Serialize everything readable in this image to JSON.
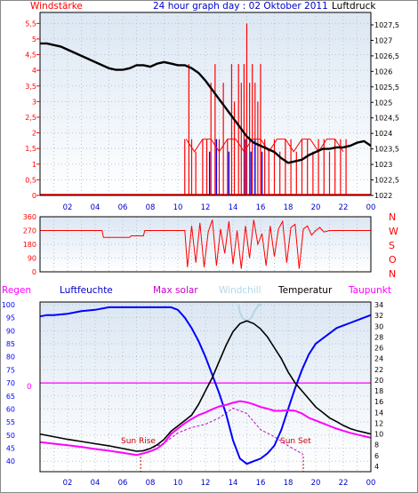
{
  "title": "24 hour graph day : 02 Oktober 2011",
  "colors": {
    "background": "#ffffff",
    "plot_top": "#dce7f3",
    "plot_bottom": "#ffffff",
    "grid": "#b7c6d8",
    "wind_speed": "#ff0000",
    "wind_gust": "#0000ff",
    "pressure": "#000000",
    "direction": "#ff0000",
    "humidity": "#0000ff",
    "temperature": "#000000",
    "dewpoint": "#ff00ff",
    "windchill": "#b3d6e6",
    "max_solar": "#cc00cc",
    "rain": "#ff00ff",
    "sun_marker": "#cc0000"
  },
  "chart_data": [
    {
      "type": "line",
      "name": "wind-pressure",
      "left_label": "Windstärke",
      "right_label": "Luftdruck",
      "x_ticks": [
        "02",
        "04",
        "06",
        "08",
        "10",
        "12",
        "14",
        "16",
        "18",
        "20",
        "22",
        "00"
      ],
      "xlim": [
        0,
        24
      ],
      "left_ticks": [
        "0",
        "0,5",
        "1",
        "1,5",
        "2",
        "2,5",
        "3",
        "3,5",
        "4",
        "4,5",
        "5",
        "5,5"
      ],
      "left_ylim": [
        0,
        5.85
      ],
      "right_ticks": [
        "1022",
        "1022,5",
        "1023",
        "1023,5",
        "1024",
        "1024,5",
        "1025",
        "1025,5",
        "1026",
        "1026,5",
        "1027",
        "1027,5"
      ],
      "right_ylim": [
        1022,
        1027.9
      ],
      "pressure": {
        "x": [
          0,
          0.5,
          1,
          1.5,
          2,
          2.5,
          3,
          3.5,
          4,
          4.5,
          5,
          5.5,
          6,
          6.5,
          7,
          7.5,
          8,
          8.5,
          9,
          9.5,
          10,
          10.5,
          11,
          11.5,
          12,
          12.5,
          13,
          13.5,
          14,
          14.5,
          15,
          15.5,
          16,
          16.5,
          17,
          17.5,
          18,
          18.5,
          19,
          19.5,
          20,
          20.5,
          21,
          21.5,
          22,
          22.5,
          23,
          23.5,
          24
        ],
        "y": [
          1026.9,
          1026.9,
          1026.85,
          1026.8,
          1026.7,
          1026.6,
          1026.5,
          1026.4,
          1026.3,
          1026.2,
          1026.1,
          1026.05,
          1026.05,
          1026.1,
          1026.2,
          1026.2,
          1026.15,
          1026.25,
          1026.3,
          1026.25,
          1026.2,
          1026.2,
          1026.1,
          1025.95,
          1025.7,
          1025.4,
          1025.1,
          1024.8,
          1024.5,
          1024.2,
          1023.9,
          1023.7,
          1023.6,
          1023.5,
          1023.4,
          1023.2,
          1023.05,
          1023.1,
          1023.15,
          1023.3,
          1023.4,
          1023.5,
          1023.5,
          1023.55,
          1023.55,
          1023.6,
          1023.7,
          1023.75,
          1023.6
        ]
      },
      "wind_speed_bars": [
        [
          10.5,
          1.8
        ],
        [
          10.8,
          4.2
        ],
        [
          11,
          1.8
        ],
        [
          11.3,
          1.4
        ],
        [
          11.8,
          1.8
        ],
        [
          12.1,
          1.8
        ],
        [
          12.4,
          3.6
        ],
        [
          12.7,
          4.2
        ],
        [
          13,
          1.8
        ],
        [
          13.3,
          3.6
        ],
        [
          13.6,
          1.8
        ],
        [
          13.9,
          4.2
        ],
        [
          14.1,
          3.0
        ],
        [
          14.4,
          4.2
        ],
        [
          14.6,
          3.6
        ],
        [
          14.8,
          4.2
        ],
        [
          15,
          5.5
        ],
        [
          15.2,
          3.6
        ],
        [
          15.4,
          4.2
        ],
        [
          15.6,
          3.6
        ],
        [
          15.8,
          3.0
        ],
        [
          16,
          4.2
        ],
        [
          16.3,
          1.8
        ],
        [
          16.6,
          1.4
        ],
        [
          17,
          1.8
        ],
        [
          17.4,
          1.4
        ],
        [
          17.8,
          1.8
        ],
        [
          18.2,
          1.8
        ],
        [
          18.6,
          1.4
        ],
        [
          19,
          1.8
        ],
        [
          19.4,
          1.8
        ],
        [
          19.8,
          1.4
        ],
        [
          20.2,
          1.8
        ],
        [
          20.6,
          1.8
        ],
        [
          21,
          1.4
        ],
        [
          21.4,
          1.8
        ],
        [
          21.8,
          1.8
        ],
        [
          22.2,
          1.8
        ]
      ],
      "wind_gust_bars": [
        [
          12.3,
          1.4
        ],
        [
          12.8,
          1.8
        ],
        [
          13.7,
          1.4
        ],
        [
          14.9,
          1.8
        ],
        [
          15.3,
          1.4
        ],
        [
          15.6,
          1.8
        ],
        [
          16.1,
          1.4
        ]
      ]
    },
    {
      "type": "line",
      "name": "wind-direction",
      "right_label": [
        "N",
        "W",
        "S",
        "O",
        "N"
      ],
      "left_ticks": [
        "0",
        "90",
        "180",
        "270",
        "360"
      ],
      "ylim": [
        0,
        360
      ],
      "x": [
        0,
        4.5,
        4.6,
        6.5,
        6.6,
        7.5,
        7.6,
        10.5,
        10.7,
        11,
        11.3,
        11.6,
        11.9,
        12.2,
        12.5,
        12.8,
        13.1,
        13.4,
        13.7,
        14,
        14.3,
        14.6,
        14.9,
        15.2,
        15.5,
        15.8,
        16.1,
        16.4,
        16.7,
        17,
        17.3,
        17.6,
        17.9,
        18.2,
        18.5,
        18.8,
        19.1,
        19.4,
        19.7,
        20,
        20.3,
        20.6,
        21,
        21.5,
        22,
        23,
        24
      ],
      "y": [
        270,
        270,
        225,
        225,
        235,
        235,
        270,
        270,
        30,
        300,
        60,
        320,
        30,
        260,
        340,
        40,
        280,
        120,
        330,
        50,
        270,
        20,
        300,
        90,
        340,
        180,
        250,
        40,
        300,
        100,
        280,
        330,
        60,
        290,
        310,
        20,
        280,
        300,
        240,
        270,
        290,
        260,
        270,
        270,
        270,
        270,
        270
      ]
    },
    {
      "type": "line",
      "name": "temperature-humidity",
      "legend": [
        "Regen",
        "Luftfeuchte",
        "Max solar",
        "Windchill",
        "Temperatur",
        "Taupunkt"
      ],
      "left_ticks": [
        "40",
        "45",
        "50",
        "55",
        "60",
        "65",
        "70",
        "75",
        "80",
        "85",
        "90",
        "95",
        "100"
      ],
      "left_ylim": [
        36,
        101
      ],
      "right_ticks": [
        "4",
        "6",
        "8",
        "10",
        "12",
        "14",
        "16",
        "18",
        "20",
        "22",
        "24",
        "26",
        "28",
        "30",
        "32",
        "34"
      ],
      "right_ylim": [
        3,
        34.5
      ],
      "rain_marker": "0",
      "rain_line_value": 70,
      "sun_rise_label": "Sun Rise",
      "sun_set_label": "Sun Set",
      "sun_rise_x": 7.3,
      "sun_set_x": 19.1,
      "humidity": {
        "x": [
          0,
          0.5,
          1,
          2,
          3,
          4,
          5,
          6,
          7,
          8,
          9,
          9.5,
          10,
          10.5,
          11,
          11.5,
          12,
          12.5,
          13,
          13.5,
          14,
          14.5,
          15,
          15.5,
          16,
          16.5,
          17,
          17.5,
          18,
          18.5,
          19,
          19.5,
          20,
          20.5,
          21,
          21.5,
          22,
          22.5,
          23,
          23.5,
          24
        ],
        "y": [
          95.5,
          96,
          96,
          96.5,
          97.5,
          98,
          99,
          99,
          99,
          99,
          99,
          99,
          98,
          95,
          91,
          86,
          80,
          73,
          66,
          58,
          48,
          41,
          39,
          40,
          41,
          43,
          46,
          52,
          60,
          68,
          75,
          81,
          85,
          87,
          89,
          91,
          92,
          93,
          94,
          95,
          96
        ]
      },
      "temperature": {
        "x": [
          0,
          1,
          2,
          3,
          4,
          5,
          6,
          7,
          7.5,
          8,
          8.5,
          9,
          9.5,
          10,
          10.5,
          11,
          11.5,
          12,
          12.5,
          13,
          13.5,
          14,
          14.5,
          15,
          15.5,
          16,
          16.5,
          17,
          17.5,
          18,
          18.5,
          19,
          19.5,
          20,
          20.5,
          21,
          21.5,
          22,
          22.5,
          23,
          23.5,
          24
        ],
        "y": [
          10,
          9.5,
          9,
          8.6,
          8.2,
          7.8,
          7.3,
          6.8,
          6.9,
          7.3,
          8,
          9,
          10.5,
          11.5,
          12.5,
          13.5,
          15.5,
          18,
          20.5,
          23.5,
          26.5,
          29,
          30.5,
          31,
          30.5,
          29.5,
          28,
          26,
          24,
          21.5,
          19.5,
          18,
          16.5,
          15,
          14,
          13,
          12.3,
          11.6,
          11,
          10.6,
          10.3,
          10
        ]
      },
      "dewpoint": {
        "x": [
          0,
          1,
          2,
          3,
          4,
          5,
          6,
          7,
          7.5,
          8,
          8.5,
          9,
          9.5,
          10,
          10.5,
          11,
          11.5,
          12,
          12.5,
          13,
          13.5,
          14,
          14.5,
          15,
          15.5,
          16,
          16.5,
          17,
          17.5,
          18,
          18.5,
          19,
          19.5,
          20,
          20.5,
          21,
          21.5,
          22,
          22.5,
          23,
          23.5,
          24
        ],
        "y": [
          8.5,
          8.2,
          7.9,
          7.6,
          7.2,
          6.9,
          6.5,
          6.1,
          6.4,
          6.8,
          7.3,
          8.3,
          10,
          11,
          12,
          12.8,
          13.5,
          14,
          14.6,
          15.1,
          15.4,
          15.8,
          16.1,
          15.9,
          15.5,
          15,
          14.7,
          14.3,
          14.3,
          14.4,
          14.3,
          13.8,
          13,
          12.5,
          12,
          11.5,
          11,
          10.6,
          10.2,
          9.9,
          9.6,
          9.3
        ]
      },
      "windchill": {
        "x": [
          14.4,
          14.5,
          14.7,
          15,
          15.3,
          15.6,
          15.9,
          16.1
        ],
        "y": [
          34,
          32.5,
          31.5,
          31,
          31.5,
          33,
          34,
          34
        ]
      },
      "max_solar": {
        "x": [
          7.3,
          8,
          9,
          10,
          11,
          12,
          13,
          14,
          15,
          16,
          17,
          18,
          19.1
        ],
        "y": [
          6.8,
          7.3,
          8.3,
          10.2,
          11.2,
          11.8,
          13.0,
          14.8,
          13.8,
          10.8,
          9.5,
          7.8,
          6.2
        ]
      }
    }
  ]
}
